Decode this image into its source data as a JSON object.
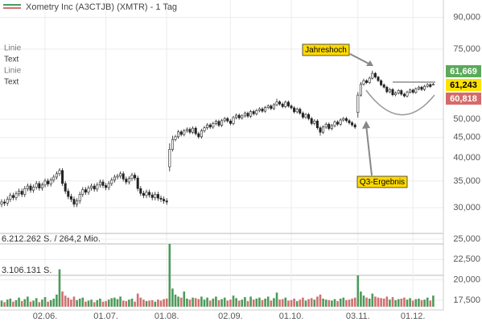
{
  "chart_data": {
    "type": "candlestick",
    "title": "Xometry Inc (A3CTJB) (XMTR) - 1 Tag",
    "side_labels": [
      "Linie",
      "Text",
      "Linie",
      "Text"
    ],
    "annotations": [
      "Jahreshoch",
      "Q3-Ergebnis"
    ],
    "log_scale": true,
    "grid": true,
    "up_color": "#ffffff",
    "down_color": "#222222",
    "volume_up_color": "#4e9a5a",
    "volume_down_color": "#d07070",
    "ylim": [
      25850,
      99600
    ],
    "yticks": [
      {
        "value": 30000,
        "label": "30,000"
      },
      {
        "value": 35000,
        "label": "35,000"
      },
      {
        "value": 40000,
        "label": "40,000"
      },
      {
        "value": 45000,
        "label": "45,000"
      },
      {
        "value": 50000,
        "label": "50,000"
      },
      {
        "value": 75000,
        "label": "75,000"
      },
      {
        "value": 90000,
        "label": "90,000"
      }
    ],
    "tags": [
      {
        "value": 61669,
        "label": "61,669",
        "color": "#5aaa5a"
      },
      {
        "value": 61243,
        "label": "61,243",
        "color": "#ffe100"
      },
      {
        "value": 60818,
        "label": "60,818",
        "color": "#d66a6a"
      }
    ],
    "y2lim": [
      16316,
      25690
    ],
    "y2ticks": [
      {
        "value": 25000,
        "label": "25,000"
      },
      {
        "value": 22500,
        "label": "22,500"
      },
      {
        "value": 20000,
        "label": "20,000"
      },
      {
        "value": 17500,
        "label": "17,500"
      }
    ],
    "volume_lim": [
      0,
      6212262
    ],
    "volume_lines": [
      {
        "value": 6212262,
        "label": "6.212.262 S. / 264,2 Mio."
      },
      {
        "value": 3106131,
        "label": "3.106.131 S."
      }
    ],
    "categories": [
      null,
      null,
      null,
      null,
      null,
      null,
      null,
      null,
      null,
      null,
      null,
      null,
      null,
      null,
      null,
      "02.06.",
      null,
      null,
      null,
      null,
      null,
      null,
      null,
      null,
      null,
      null,
      null,
      null,
      null,
      null,
      null,
      null,
      null,
      null,
      null,
      null,
      "01.07.",
      null,
      null,
      null,
      null,
      null,
      null,
      null,
      null,
      null,
      null,
      null,
      null,
      null,
      null,
      null,
      null,
      null,
      null,
      null,
      null,
      "01.08.",
      null,
      null,
      null,
      null,
      null,
      null,
      null,
      null,
      null,
      null,
      null,
      null,
      null,
      null,
      null,
      null,
      null,
      null,
      null,
      null,
      null,
      "02.09.",
      null,
      null,
      null,
      null,
      null,
      null,
      null,
      null,
      null,
      null,
      null,
      null,
      null,
      null,
      null,
      null,
      null,
      null,
      null,
      null,
      "01.10.",
      null,
      null,
      null,
      null,
      null,
      null,
      null,
      null,
      null,
      null,
      null,
      null,
      null,
      null,
      null,
      null,
      null,
      null,
      null,
      null,
      null,
      null,
      "03.11.",
      null,
      null,
      null,
      null,
      null,
      null,
      null,
      null,
      null,
      null,
      null,
      null,
      null,
      null,
      null,
      null,
      null,
      null,
      "01.12.",
      null,
      null,
      null,
      null,
      null,
      null,
      null
    ],
    "open": [
      30600,
      31000,
      30800,
      31500,
      32200,
      31800,
      32500,
      33000,
      32400,
      33500,
      34000,
      33200,
      33800,
      34500,
      33600,
      34200,
      35000,
      34400,
      35200,
      35800,
      36500,
      37200,
      34500,
      33000,
      32000,
      31500,
      30600,
      31200,
      32400,
      33300,
      32800,
      33600,
      34000,
      33400,
      34200,
      34800,
      34100,
      33700,
      34500,
      35200,
      35800,
      36000,
      36500,
      35400,
      34800,
      35500,
      36200,
      35600,
      33500,
      32600,
      32200,
      32800,
      32300,
      31800,
      32400,
      31700,
      31500,
      31200,
      38000,
      42000,
      44500,
      45200,
      46500,
      45800,
      46800,
      47200,
      46400,
      47500,
      46000,
      45200,
      46800,
      47600,
      48400,
      47800,
      48800,
      49400,
      48300,
      49600,
      50200,
      49500,
      48800,
      50500,
      51200,
      50400,
      51000,
      51800,
      50900,
      52300,
      51600,
      52600,
      53100,
      52400,
      53500,
      54000,
      53200,
      54400,
      55300,
      54600,
      53800,
      55200,
      54000,
      53400,
      52200,
      53000,
      51800,
      50600,
      51400,
      50200,
      48800,
      49500,
      47600,
      46400,
      47800,
      48600,
      47400,
      48200,
      49200,
      48600,
      49800,
      50200,
      49600,
      49000,
      48400,
      52000,
      57500,
      61200,
      62500,
      61800,
      63400,
      65200,
      63800,
      62500,
      61000,
      60200,
      58600,
      59400,
      57600,
      58200,
      59000,
      57800,
      57200,
      58500,
      59200,
      58400,
      59600,
      60200,
      59400,
      60500,
      61100,
      60900
    ],
    "high": [
      31500,
      31500,
      32000,
      32700,
      32700,
      33000,
      33500,
      33500,
      34000,
      34500,
      34500,
      34300,
      35000,
      35000,
      34700,
      35500,
      35500,
      35700,
      36300,
      37000,
      37700,
      37700,
      35000,
      33500,
      32500,
      32000,
      31700,
      32900,
      33800,
      33800,
      34100,
      34500,
      34500,
      34700,
      35300,
      35300,
      34600,
      35000,
      35700,
      36300,
      36500,
      37000,
      37000,
      35900,
      36000,
      36700,
      36700,
      36100,
      34000,
      33100,
      33300,
      33300,
      32800,
      32900,
      32900,
      32200,
      32000,
      31700,
      43500,
      45500,
      45700,
      47000,
      47000,
      47300,
      47700,
      47700,
      48000,
      48000,
      46500,
      47300,
      48100,
      48900,
      48900,
      49300,
      49900,
      49900,
      50100,
      50700,
      50700,
      50000,
      51000,
      51700,
      51700,
      51500,
      52300,
      52300,
      52800,
      52800,
      53100,
      53600,
      53600,
      54000,
      54500,
      54500,
      54900,
      56300,
      55800,
      55100,
      55700,
      55700,
      54500,
      53900,
      53500,
      53500,
      52300,
      51900,
      51900,
      50700,
      50000,
      50000,
      48100,
      48300,
      49100,
      49100,
      48700,
      49700,
      49700,
      50300,
      50700,
      50700,
      50100,
      49500,
      48900,
      58500,
      62000,
      63200,
      63000,
      64000,
      66200,
      65700,
      64300,
      63000,
      61500,
      60700,
      59900,
      59900,
      58700,
      59500,
      59500,
      58300,
      59000,
      59700,
      59700,
      60100,
      60700,
      60700,
      61000,
      61600,
      61600,
      61669
    ],
    "low": [
      30100,
      30300,
      30300,
      31000,
      31300,
      31300,
      32000,
      31900,
      31900,
      33000,
      32700,
      32700,
      33300,
      33100,
      33100,
      33700,
      33900,
      33900,
      34700,
      35300,
      36000,
      34000,
      32500,
      31500,
      31000,
      30100,
      30100,
      30700,
      31900,
      32300,
      32300,
      33100,
      32900,
      32900,
      33700,
      33600,
      33200,
      33200,
      34000,
      34700,
      35300,
      35500,
      34900,
      34300,
      34300,
      35000,
      35100,
      33000,
      32100,
      31700,
      31700,
      31800,
      31300,
      31300,
      31200,
      31000,
      30700,
      30500,
      37000,
      41500,
      44000,
      44700,
      45300,
      45300,
      46300,
      45900,
      45900,
      45500,
      44700,
      44700,
      46300,
      47100,
      47300,
      47300,
      48300,
      47800,
      47800,
      49100,
      49000,
      48300,
      48300,
      50000,
      49900,
      49900,
      50500,
      50400,
      50400,
      51100,
      51100,
      52100,
      51900,
      51900,
      53000,
      52700,
      52700,
      53900,
      54100,
      53300,
      53300,
      53500,
      52900,
      51700,
      51700,
      51300,
      50100,
      50100,
      49700,
      48300,
      48300,
      47100,
      45500,
      45900,
      47300,
      46900,
      46900,
      47700,
      48100,
      48100,
      49300,
      49100,
      48500,
      47900,
      47300,
      50500,
      57000,
      60700,
      61300,
      61300,
      62900,
      63300,
      62000,
      60500,
      59700,
      58100,
      58100,
      57100,
      57100,
      57700,
      57300,
      56700,
      56700,
      58000,
      57900,
      57900,
      59100,
      58900,
      58900,
      60000,
      59900,
      60818
    ],
    "close": [
      31000,
      30800,
      31500,
      32200,
      31800,
      32500,
      33000,
      32400,
      33500,
      34000,
      33200,
      33800,
      34500,
      33600,
      34200,
      35000,
      34400,
      35200,
      35800,
      36500,
      37200,
      34500,
      33000,
      32000,
      31500,
      30600,
      31200,
      32400,
      33300,
      32800,
      33600,
      34000,
      33400,
      34200,
      34800,
      34100,
      33700,
      34500,
      35200,
      35800,
      36000,
      36500,
      35400,
      34800,
      35500,
      36200,
      35600,
      33500,
      32600,
      32200,
      32800,
      32300,
      31800,
      32400,
      31700,
      31500,
      31200,
      31000,
      42000,
      44500,
      45200,
      46500,
      45800,
      46800,
      47200,
      46400,
      47500,
      46000,
      45200,
      46800,
      47600,
      48400,
      47800,
      48800,
      49400,
      48300,
      49600,
      50200,
      49500,
      48800,
      50500,
      51200,
      50400,
      51000,
      51800,
      50900,
      52300,
      51600,
      52600,
      53100,
      52400,
      53500,
      54000,
      53200,
      54400,
      55300,
      54600,
      53800,
      55200,
      54000,
      53400,
      52200,
      53000,
      51800,
      50600,
      51400,
      50200,
      48800,
      49500,
      47600,
      46400,
      47800,
      48600,
      47400,
      48200,
      49200,
      48600,
      49800,
      50200,
      49600,
      49000,
      48400,
      47800,
      57500,
      61200,
      62500,
      61800,
      63400,
      65200,
      63800,
      62500,
      61000,
      60200,
      58600,
      59400,
      57600,
      58200,
      59000,
      57800,
      57200,
      58500,
      59200,
      58400,
      59600,
      60200,
      59400,
      60500,
      61100,
      60400,
      61243
    ],
    "volume": [
      600000,
      450000,
      700000,
      800000,
      500000,
      650000,
      900000,
      550000,
      750000,
      1000000,
      500000,
      600000,
      850000,
      450000,
      700000,
      950000,
      500000,
      650000,
      800000,
      1200000,
      3700000,
      1500000,
      1100000,
      900000,
      700000,
      1000000,
      650000,
      800000,
      900000,
      500000,
      600000,
      700000,
      450000,
      650000,
      800000,
      500000,
      550000,
      700000,
      850000,
      900000,
      750000,
      1000000,
      600000,
      550000,
      700000,
      800000,
      500000,
      1300000,
      900000,
      700000,
      550000,
      600000,
      650000,
      500000,
      700000,
      600000,
      750000,
      800000,
      6212262,
      1800000,
      1200000,
      1000000,
      900000,
      1500000,
      800000,
      700000,
      900000,
      850000,
      750000,
      1000000,
      700000,
      900000,
      600000,
      800000,
      1000000,
      650000,
      750000,
      900000,
      600000,
      700000,
      1100000,
      850000,
      600000,
      700000,
      950000,
      550000,
      1000000,
      700000,
      800000,
      900000,
      650000,
      800000,
      1000000,
      600000,
      850000,
      1400000,
      700000,
      750000,
      900000,
      600000,
      650000,
      800000,
      550000,
      700000,
      900000,
      600000,
      750000,
      850000,
      700000,
      1000000,
      1200000,
      800000,
      700000,
      650000,
      600000,
      750000,
      550000,
      800000,
      900000,
      650000,
      700000,
      800000,
      900000,
      3100000,
      1500000,
      1100000,
      900000,
      800000,
      1300000,
      1000000,
      900000,
      850000,
      800000,
      1000000,
      700000,
      950000,
      650000,
      750000,
      800000,
      900000,
      700000,
      850000,
      600000,
      750000,
      800000,
      650000,
      700000,
      900000,
      600000,
      1100000
    ]
  }
}
